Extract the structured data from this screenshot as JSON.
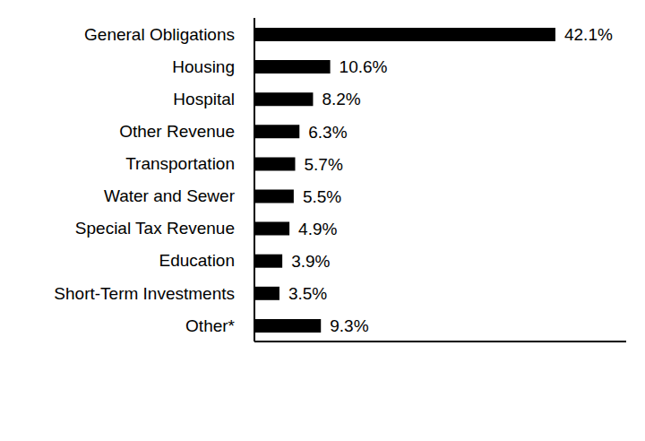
{
  "chart_data": {
    "type": "bar",
    "orientation": "horizontal",
    "categories": [
      "General Obligations",
      "Housing",
      "Hospital",
      "Other Revenue",
      "Transportation",
      "Water and Sewer",
      "Special Tax Revenue",
      "Education",
      "Short-Term Investments",
      "Other*"
    ],
    "values": [
      42.1,
      10.6,
      8.2,
      6.3,
      5.7,
      5.5,
      4.9,
      3.9,
      3.5,
      9.3
    ],
    "value_labels": [
      "42.1%",
      "10.6%",
      "8.2%",
      "6.3%",
      "5.7%",
      "5.5%",
      "4.9%",
      "3.9%",
      "3.5%",
      "9.3%"
    ],
    "color": "#000000",
    "xlim": [
      0,
      52
    ],
    "grid": false,
    "data_labels": true,
    "tick_labels": "y"
  }
}
